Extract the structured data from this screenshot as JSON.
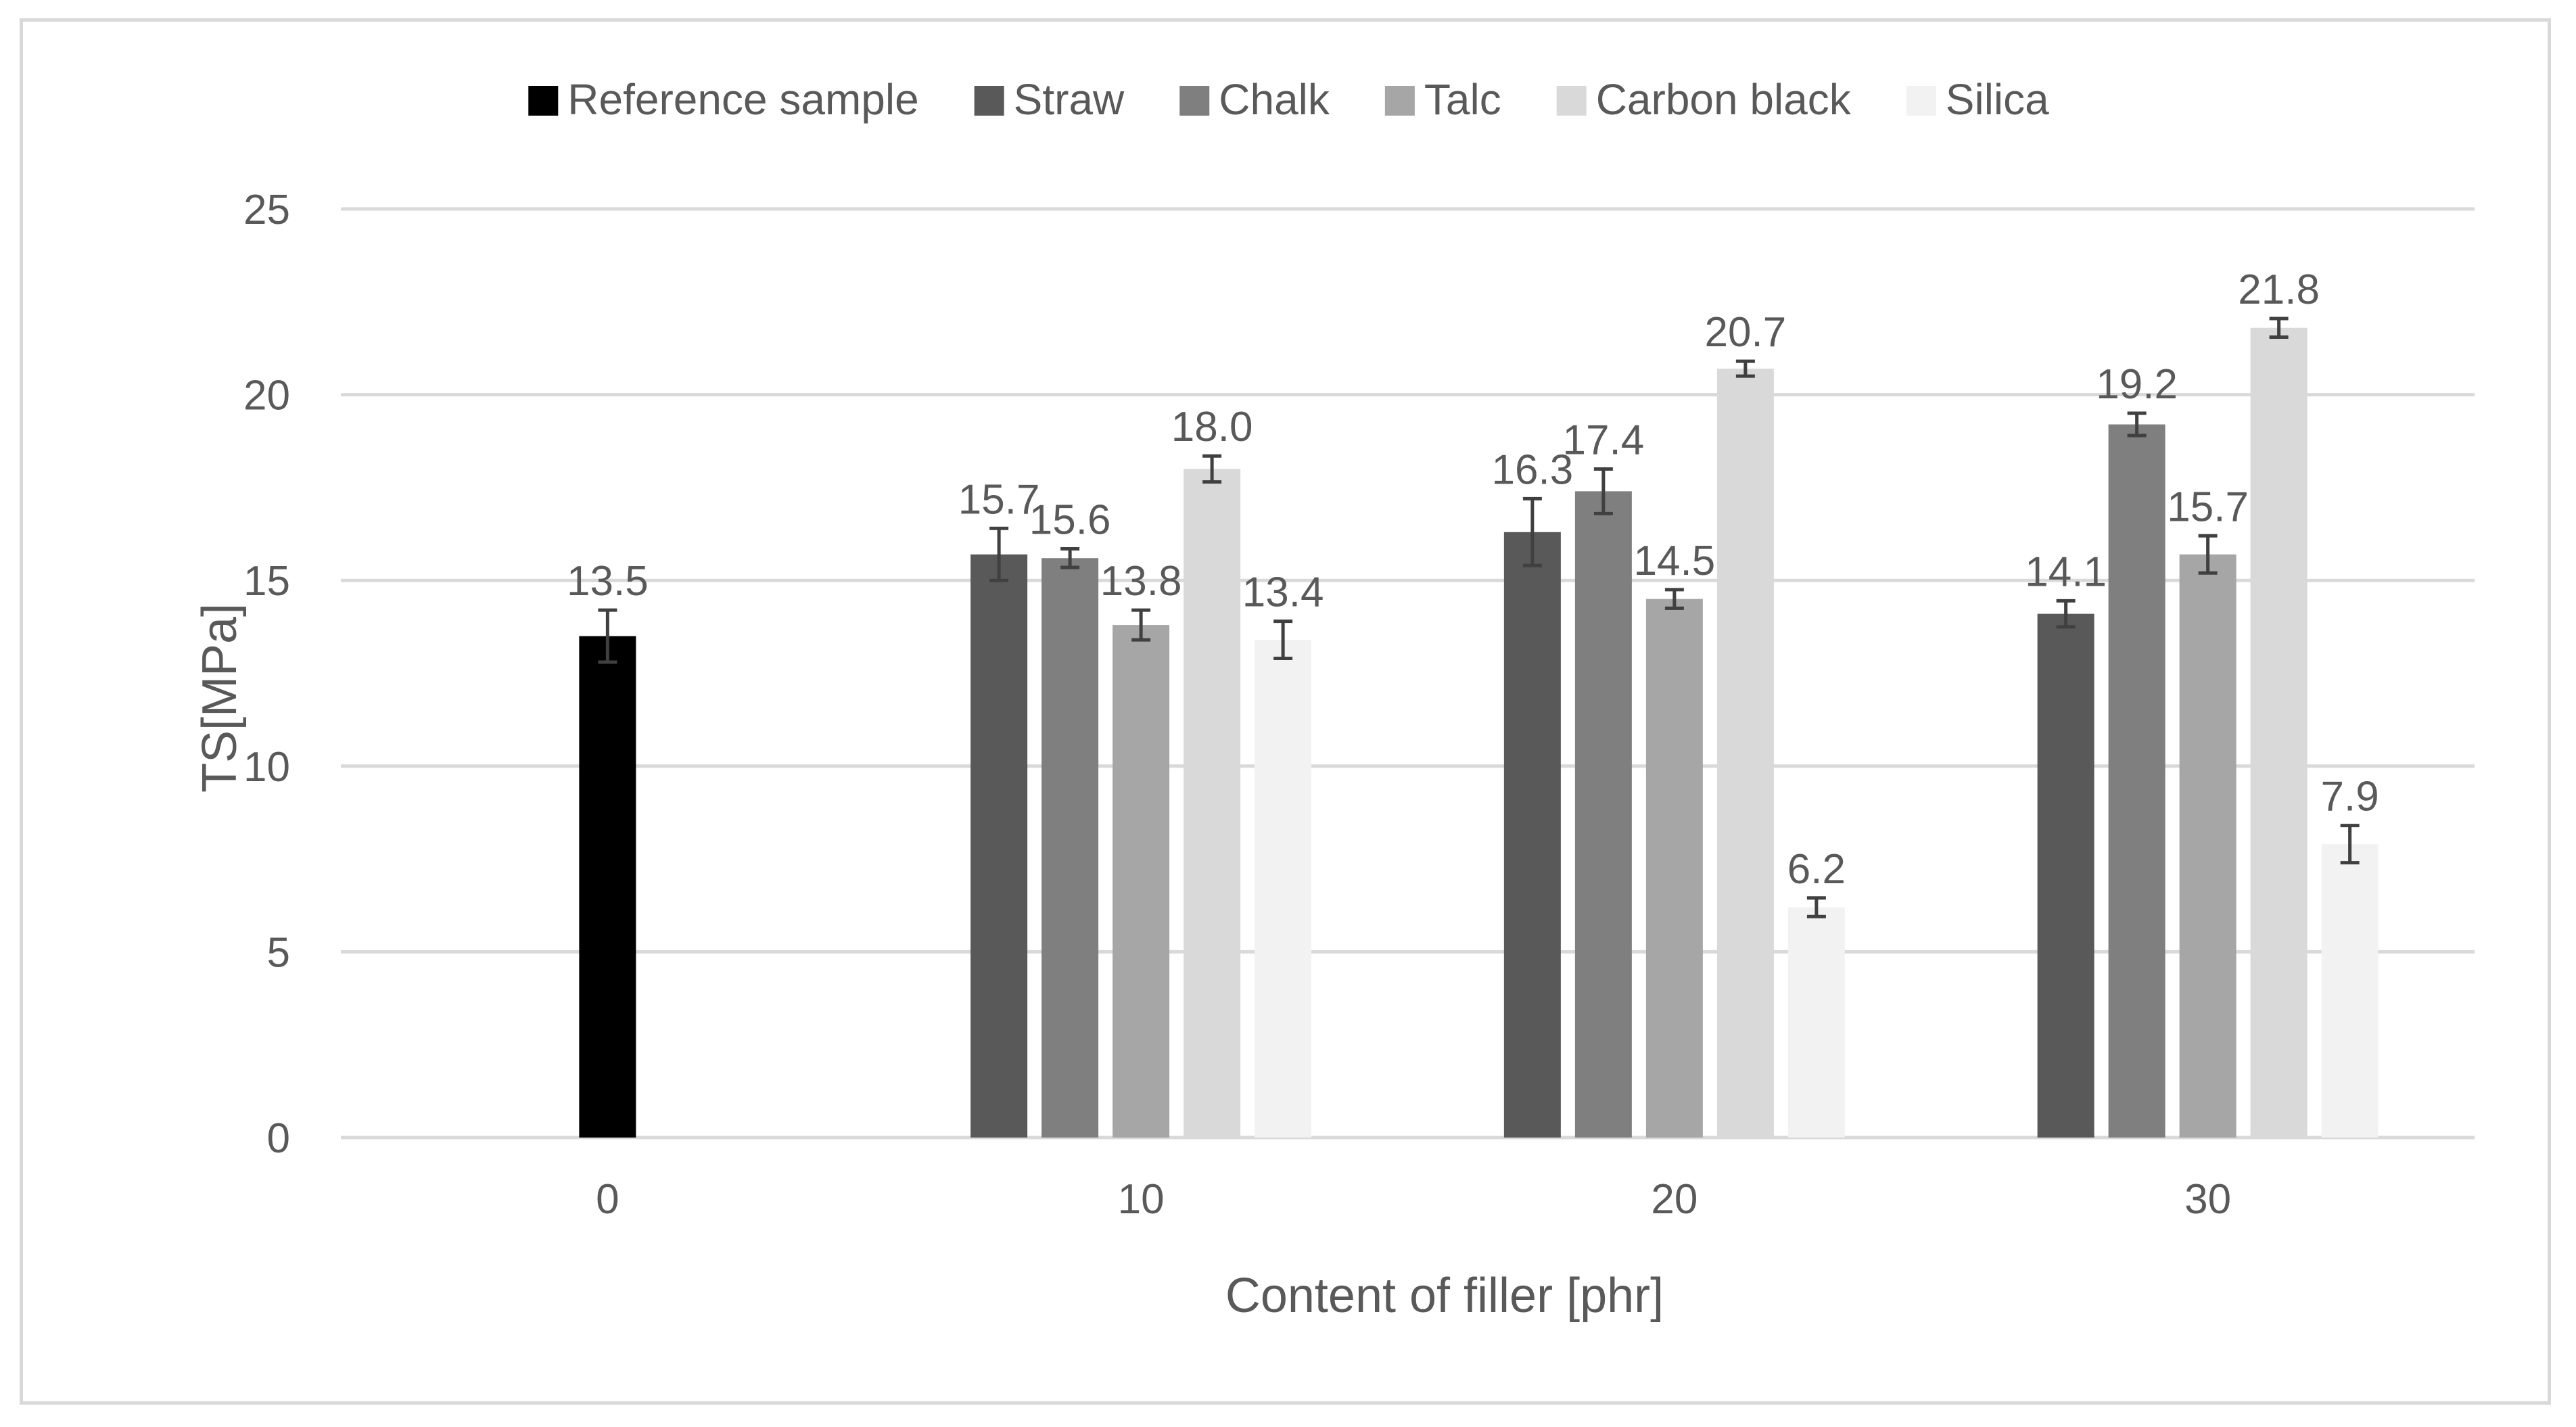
{
  "chart_data": {
    "type": "bar",
    "title": "",
    "xlabel": "Content of filler [phr]",
    "ylabel": "TS[MPa]",
    "ylim": [
      0,
      25
    ],
    "yticks": [
      0,
      5,
      10,
      15,
      20,
      25
    ],
    "grid": true,
    "legend_position": "top",
    "categories": [
      "0",
      "10",
      "20",
      "30"
    ],
    "series": [
      {
        "name": "Reference sample",
        "color": "#000000",
        "values": [
          13.5,
          null,
          null,
          null
        ],
        "errors": [
          0.7,
          null,
          null,
          null
        ],
        "labels": [
          "13.5",
          "",
          "",
          ""
        ]
      },
      {
        "name": "Straw",
        "color": "#595959",
        "values": [
          null,
          15.7,
          16.3,
          14.1
        ],
        "errors": [
          null,
          0.7,
          0.9,
          0.35
        ],
        "labels": [
          "",
          "15.7",
          "16.3",
          "14.1"
        ]
      },
      {
        "name": "Chalk",
        "color": "#7f7f7f",
        "values": [
          null,
          15.6,
          17.4,
          19.2
        ],
        "errors": [
          null,
          0.25,
          0.6,
          0.3
        ],
        "labels": [
          "",
          "15.6",
          "17.4",
          "19.2"
        ]
      },
      {
        "name": "Talc",
        "color": "#a6a6a6",
        "values": [
          null,
          13.8,
          14.5,
          15.7
        ],
        "errors": [
          null,
          0.4,
          0.25,
          0.5
        ],
        "labels": [
          "",
          "13.8",
          "14.5",
          "15.7"
        ]
      },
      {
        "name": "Carbon black",
        "color": "#d9d9d9",
        "values": [
          null,
          18.0,
          20.7,
          21.8
        ],
        "errors": [
          null,
          0.35,
          0.2,
          0.25
        ],
        "labels": [
          "",
          "18.0",
          "20.7",
          "21.8"
        ]
      },
      {
        "name": "Silica",
        "color": "#f2f2f2",
        "values": [
          null,
          13.4,
          6.2,
          7.9
        ],
        "errors": [
          null,
          0.5,
          0.25,
          0.5
        ],
        "labels": [
          "",
          "13.4",
          "6.2",
          "7.9"
        ]
      }
    ]
  }
}
